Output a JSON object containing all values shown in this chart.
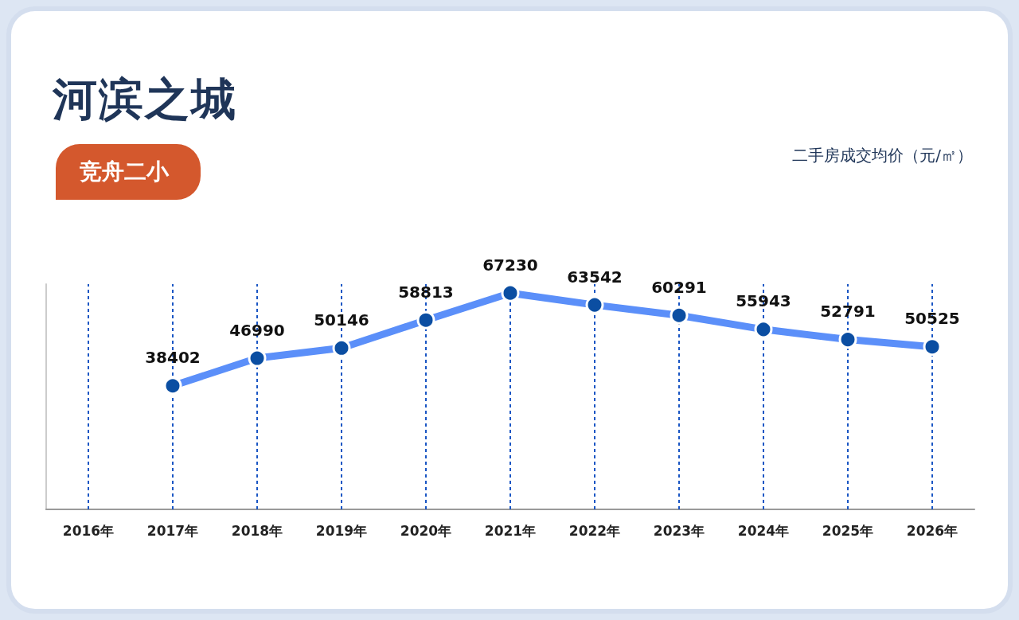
{
  "chart_data": {
    "type": "line",
    "title": "河滨之城",
    "subtitle": "竞舟二小",
    "annotations": [
      "二手房成交均价（元/㎡）"
    ],
    "categories": [
      "2016年",
      "2017年",
      "2018年",
      "2019年",
      "2020年",
      "2021年",
      "2022年",
      "2023年",
      "2024年",
      "2025年",
      "2026年"
    ],
    "series": [
      {
        "color": "#5b8ff9",
        "values": [
          null,
          38402,
          46990,
          50146,
          58813,
          67230,
          63542,
          60291,
          55943,
          52791,
          50525
        ]
      }
    ],
    "data_labels": true,
    "grid": "x",
    "marker": "circle",
    "line_style": "solid"
  }
}
